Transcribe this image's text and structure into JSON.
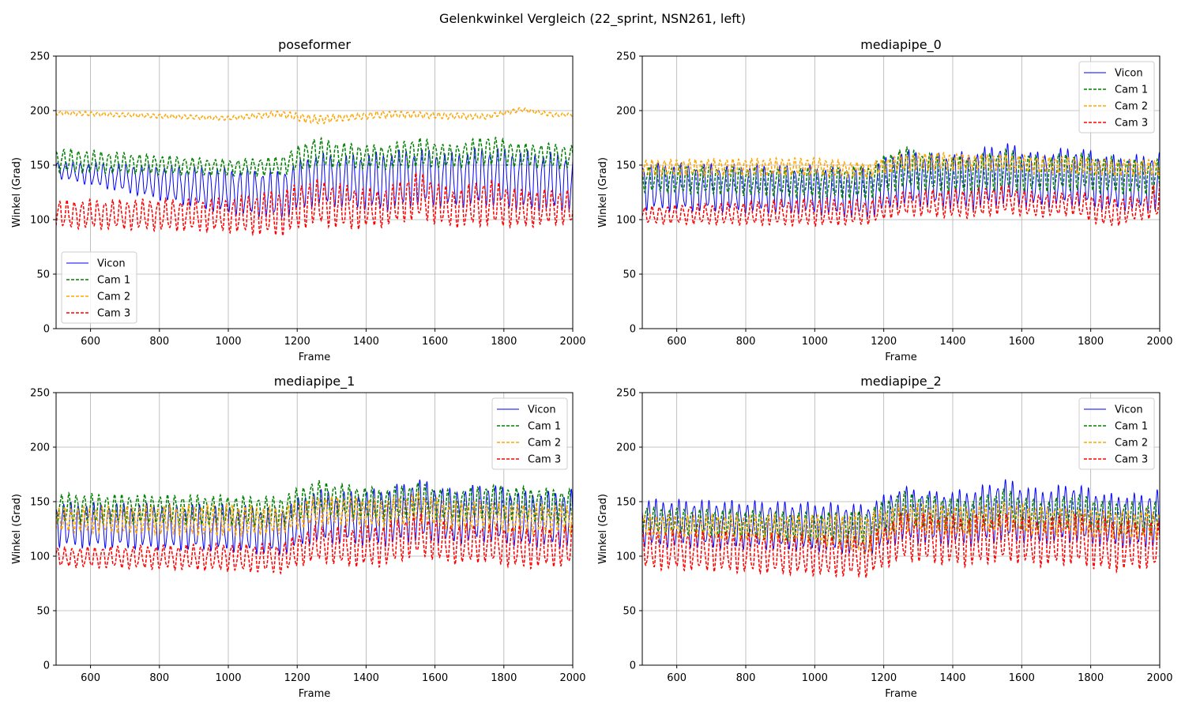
{
  "figure": {
    "title": "Gelenkwinkel Vergleich (22_sprint, NSN261, left)"
  },
  "chart_data": [
    {
      "type": "line",
      "title": "poseformer",
      "xlabel": "Frame",
      "ylabel": "Winkel (Grad)",
      "xlim": [
        500,
        2000
      ],
      "ylim": [
        0,
        250
      ],
      "xticks": [
        600,
        800,
        1000,
        1200,
        1400,
        1600,
        1800,
        2000
      ],
      "yticks": [
        0,
        50,
        100,
        150,
        200,
        250
      ],
      "grid": true,
      "legend_position": "lower-left",
      "x": [
        500,
        1000,
        1150,
        1250,
        1350,
        1450,
        1550,
        1650,
        1750,
        1850,
        1950,
        2000
      ],
      "series": [
        {
          "name": "Vicon",
          "color": "#0000ff",
          "style": "solid",
          "period": 22,
          "high": [
            154,
            148,
            145,
            162,
            160,
            163,
            166,
            162,
            168,
            164,
            162,
            162
          ],
          "low": [
            138,
            104,
            100,
            112,
            110,
            107,
            112,
            110,
            112,
            108,
            107,
            108
          ]
        },
        {
          "name": "Cam 1",
          "color": "#008000",
          "style": "dashed",
          "period": 22,
          "high": [
            166,
            155,
            158,
            176,
            170,
            168,
            176,
            168,
            178,
            170,
            170,
            168
          ],
          "low": [
            143,
            140,
            140,
            148,
            147,
            146,
            148,
            147,
            150,
            148,
            147,
            147
          ]
        },
        {
          "name": "Cam 2",
          "color": "#ffa500",
          "style": "dashed",
          "period": 18,
          "high": [
            200,
            195,
            200,
            196,
            197,
            200,
            199,
            198,
            197,
            203,
            198,
            198
          ],
          "low": [
            196,
            191,
            194,
            187,
            191,
            193,
            193,
            192,
            192,
            199,
            194,
            195
          ]
        },
        {
          "name": "Cam 3",
          "color": "#ff0000",
          "style": "dashed",
          "period": 22,
          "high": [
            118,
            120,
            128,
            138,
            132,
            128,
            145,
            128,
            138,
            128,
            128,
            128
          ],
          "low": [
            92,
            88,
            84,
            95,
            90,
            93,
            100,
            92,
            94,
            92,
            95,
            95
          ]
        }
      ]
    },
    {
      "type": "line",
      "title": "mediapipe_0",
      "xlabel": "Frame",
      "ylabel": "Winkel (Grad)",
      "xlim": [
        500,
        2000
      ],
      "ylim": [
        0,
        250
      ],
      "xticks": [
        600,
        800,
        1000,
        1200,
        1400,
        1600,
        1800,
        2000
      ],
      "yticks": [
        0,
        50,
        100,
        150,
        200,
        250
      ],
      "grid": true,
      "legend_position": "upper-right",
      "x": [
        500,
        1000,
        1150,
        1250,
        1350,
        1450,
        1550,
        1650,
        1750,
        1850,
        1950,
        2000
      ],
      "series": [
        {
          "name": "Vicon",
          "color": "#0000ff",
          "style": "solid",
          "period": 22,
          "high": [
            153,
            150,
            148,
            165,
            162,
            163,
            172,
            162,
            168,
            160,
            160,
            163
          ],
          "low": [
            108,
            104,
            100,
            112,
            110,
            108,
            113,
            110,
            112,
            108,
            107,
            108
          ]
        },
        {
          "name": "Cam 1",
          "color": "#008000",
          "style": "dashed",
          "period": 22,
          "high": [
            150,
            148,
            150,
            168,
            160,
            158,
            165,
            158,
            162,
            158,
            155,
            156
          ],
          "low": [
            125,
            120,
            118,
            128,
            125,
            124,
            126,
            125,
            127,
            124,
            123,
            124
          ]
        },
        {
          "name": "Cam 2",
          "color": "#ffa500",
          "style": "dashed",
          "period": 18,
          "high": [
            155,
            157,
            152,
            160,
            162,
            160,
            160,
            158,
            158,
            155,
            155,
            155
          ],
          "low": [
            140,
            140,
            138,
            145,
            145,
            145,
            145,
            142,
            142,
            140,
            140,
            140
          ]
        },
        {
          "name": "Cam 3",
          "color": "#ff0000",
          "style": "dashed",
          "period": 22,
          "high": [
            112,
            120,
            118,
            125,
            128,
            128,
            132,
            124,
            126,
            122,
            120,
            140
          ],
          "low": [
            96,
            94,
            95,
            104,
            102,
            101,
            105,
            102,
            104,
            92,
            100,
            100
          ]
        }
      ]
    },
    {
      "type": "line",
      "title": "mediapipe_1",
      "xlabel": "Frame",
      "ylabel": "Winkel (Grad)",
      "xlim": [
        500,
        2000
      ],
      "ylim": [
        0,
        250
      ],
      "xticks": [
        600,
        800,
        1000,
        1200,
        1400,
        1600,
        1800,
        2000
      ],
      "yticks": [
        0,
        50,
        100,
        150,
        200,
        250
      ],
      "grid": true,
      "legend_position": "upper-right",
      "x": [
        500,
        1000,
        1150,
        1250,
        1350,
        1450,
        1550,
        1650,
        1750,
        1850,
        1950,
        2000
      ],
      "series": [
        {
          "name": "Vicon",
          "color": "#0000ff",
          "style": "solid",
          "period": 22,
          "high": [
            150,
            148,
            145,
            162,
            160,
            163,
            172,
            162,
            168,
            160,
            160,
            163
          ],
          "low": [
            108,
            104,
            100,
            112,
            110,
            108,
            113,
            110,
            112,
            108,
            107,
            108
          ]
        },
        {
          "name": "Cam 1",
          "color": "#008000",
          "style": "dashed",
          "period": 22,
          "high": [
            158,
            156,
            155,
            170,
            166,
            162,
            168,
            160,
            166,
            164,
            162,
            162
          ],
          "low": [
            130,
            128,
            125,
            138,
            135,
            132,
            136,
            132,
            134,
            132,
            130,
            130
          ]
        },
        {
          "name": "Cam 2",
          "color": "#ffa500",
          "style": "dashed",
          "period": 18,
          "high": [
            145,
            148,
            145,
            155,
            155,
            152,
            158,
            150,
            150,
            148,
            148,
            148
          ],
          "low": [
            122,
            118,
            120,
            128,
            128,
            126,
            130,
            124,
            124,
            120,
            120,
            120
          ]
        },
        {
          "name": "Cam 3",
          "color": "#ff0000",
          "style": "dashed",
          "period": 22,
          "high": [
            108,
            112,
            112,
            128,
            128,
            130,
            140,
            130,
            130,
            128,
            126,
            130
          ],
          "low": [
            90,
            86,
            84,
            95,
            90,
            90,
            100,
            92,
            94,
            88,
            90,
            90
          ]
        }
      ]
    },
    {
      "type": "line",
      "title": "mediapipe_2",
      "xlabel": "Frame",
      "ylabel": "Winkel (Grad)",
      "xlim": [
        500,
        2000
      ],
      "ylim": [
        0,
        250
      ],
      "xticks": [
        600,
        800,
        1000,
        1200,
        1400,
        1600,
        1800,
        2000
      ],
      "yticks": [
        0,
        50,
        100,
        150,
        200,
        250
      ],
      "grid": true,
      "legend_position": "upper-right",
      "x": [
        500,
        1000,
        1150,
        1250,
        1350,
        1450,
        1550,
        1650,
        1750,
        1850,
        1950,
        2000
      ],
      "series": [
        {
          "name": "Vicon",
          "color": "#0000ff",
          "style": "solid",
          "period": 22,
          "high": [
            153,
            150,
            148,
            165,
            160,
            162,
            172,
            162,
            168,
            158,
            158,
            163
          ],
          "low": [
            108,
            104,
            100,
            112,
            110,
            108,
            113,
            110,
            112,
            108,
            107,
            108
          ]
        },
        {
          "name": "Cam 1",
          "color": "#008000",
          "style": "dashed",
          "period": 22,
          "high": [
            145,
            140,
            142,
            160,
            155,
            152,
            162,
            150,
            158,
            150,
            150,
            150
          ],
          "low": [
            122,
            112,
            110,
            128,
            125,
            122,
            128,
            122,
            126,
            122,
            120,
            120
          ]
        },
        {
          "name": "Cam 2",
          "color": "#ffa500",
          "style": "dashed",
          "period": 18,
          "high": [
            138,
            138,
            140,
            148,
            148,
            145,
            150,
            145,
            145,
            142,
            142,
            142
          ],
          "low": [
            118,
            112,
            100,
            122,
            120,
            118,
            125,
            118,
            120,
            116,
            116,
            116
          ]
        },
        {
          "name": "Cam 3",
          "color": "#ff0000",
          "style": "dashed",
          "period": 22,
          "high": [
            125,
            120,
            118,
            140,
            140,
            138,
            140,
            135,
            140,
            135,
            132,
            132
          ],
          "low": [
            88,
            82,
            80,
            96,
            92,
            90,
            95,
            90,
            92,
            85,
            88,
            88
          ]
        }
      ]
    }
  ]
}
